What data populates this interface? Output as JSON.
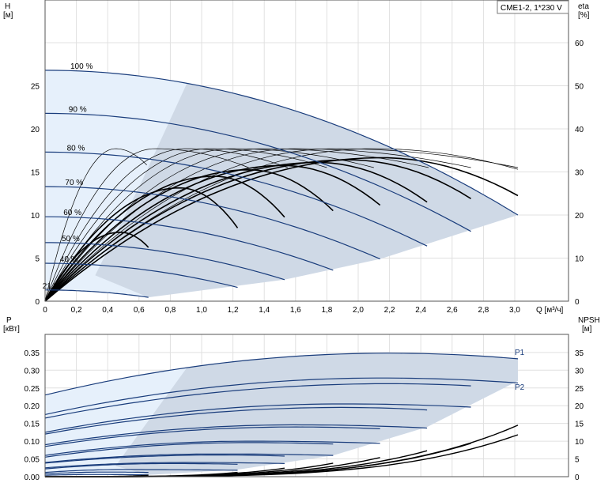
{
  "chart_data": [
    {
      "type": "line",
      "title": "CME1-2, 1*230 V",
      "xlabel": "Q [м³/ч]",
      "ylabel_left_name": "H",
      "ylabel_left_unit": "[м]",
      "ylabel_right_name": "eta",
      "ylabel_right_unit": "[%]",
      "xlim": [
        0,
        3.2
      ],
      "ylim_left": [
        0,
        30
      ],
      "ylim_right": [
        0,
        70
      ],
      "x_ticks": [
        "0",
        "0,2",
        "0,4",
        "0,6",
        "0,8",
        "1,0",
        "1,2",
        "1,4",
        "1,6",
        "1,8",
        "2,0",
        "2,2",
        "2,4",
        "2,6",
        "2,8",
        "3,0"
      ],
      "y_ticks_left": [
        "0",
        "5",
        "10",
        "15",
        "20",
        "25"
      ],
      "y_ticks_right": [
        "0",
        "10",
        "20",
        "30",
        "40",
        "50",
        "60"
      ],
      "grid": true,
      "head_curves": [
        {
          "label": "100 %",
          "H0": 26.8,
          "qmax": 3.02,
          "Hend": 10.0
        },
        {
          "label": "90 %",
          "H0": 21.8,
          "qmax": 2.72,
          "Hend": 8.1
        },
        {
          "label": "80 %",
          "H0": 17.3,
          "qmax": 2.44,
          "Hend": 6.4
        },
        {
          "label": "70 %",
          "H0": 13.3,
          "qmax": 2.14,
          "Hend": 4.9
        },
        {
          "label": "60 %",
          "H0": 9.8,
          "qmax": 1.84,
          "Hend": 3.6
        },
        {
          "label": "50 %",
          "H0": 6.8,
          "qmax": 1.53,
          "Hend": 2.5
        },
        {
          "label": "40 %",
          "H0": 4.4,
          "qmax": 1.23,
          "Hend": 1.6
        },
        {
          "label": "21 %",
          "H0": 1.3,
          "qmax": 0.66,
          "Hend": 0.45
        }
      ],
      "eta_curves": [
        {
          "qpeak": 2.15,
          "peak": 33.3,
          "qend": 3.02,
          "end": 24.5
        },
        {
          "qpeak": 1.94,
          "peak": 32.8,
          "qend": 2.72,
          "end": 23.8
        },
        {
          "qpeak": 1.74,
          "peak": 32.2,
          "qend": 2.44,
          "end": 23.0
        },
        {
          "qpeak": 1.52,
          "peak": 31.5,
          "qend": 2.14,
          "end": 22.3
        },
        {
          "qpeak": 1.3,
          "peak": 30.5,
          "qend": 1.84,
          "end": 21.0
        },
        {
          "qpeak": 1.08,
          "peak": 29.0,
          "qend": 1.53,
          "end": 19.5
        },
        {
          "qpeak": 0.86,
          "peak": 26.3,
          "qend": 1.23,
          "end": 17.0
        },
        {
          "qpeak": 0.48,
          "peak": 16.0,
          "qend": 0.66,
          "end": 12.5
        }
      ],
      "iso_eta_curves": [
        {
          "qpeak": 0.45,
          "peak": 17.7,
          "qend": 0.65,
          "end": 15.8
        },
        {
          "qpeak": 0.7,
          "peak": 17.7,
          "qend": 1.3,
          "end": 15.5
        },
        {
          "qpeak": 0.9,
          "peak": 17.7,
          "qend": 1.55,
          "end": 15.5
        },
        {
          "qpeak": 1.05,
          "peak": 17.7,
          "qend": 1.8,
          "end": 15.5
        },
        {
          "qpeak": 1.2,
          "peak": 17.7,
          "qend": 2.1,
          "end": 15.5
        },
        {
          "qpeak": 1.4,
          "peak": 17.7,
          "qend": 2.45,
          "end": 15.5
        },
        {
          "qpeak": 1.6,
          "peak": 17.7,
          "qend": 2.72,
          "end": 15.5
        },
        {
          "qpeak": 1.85,
          "peak": 17.7,
          "qend": 3.02,
          "end": 15.5
        },
        {
          "qpeak": 2.1,
          "peak": 17.7,
          "qend": 3.02,
          "end": 15.3
        }
      ]
    },
    {
      "type": "line",
      "xlabel": "",
      "ylabel_left_name": "P",
      "ylabel_left_unit": "[кВт]",
      "ylabel_right_name": "NPSH",
      "ylabel_right_unit": "[м]",
      "xlim": [
        0,
        3.2
      ],
      "ylim_left": [
        0,
        0.4
      ],
      "ylim_right": [
        0,
        40
      ],
      "y_ticks_left": [
        "0.00",
        "0.05",
        "0.10",
        "0.15",
        "0.20",
        "0.25",
        "0.30",
        "0.35"
      ],
      "y_ticks_right": [
        "0",
        "5",
        "10",
        "15",
        "20",
        "25",
        "30",
        "35"
      ],
      "grid": true,
      "series_labels": [
        "P1",
        "P2"
      ],
      "power_curves": [
        {
          "p0": 0.23,
          "qpeak": 2.2,
          "ppeak": 0.348,
          "qend": 3.02,
          "pend": 0.332
        },
        {
          "p0": 0.175,
          "qpeak": 2.15,
          "ppeak": 0.278,
          "qend": 3.02,
          "pend": 0.264
        },
        {
          "p0": 0.165,
          "qpeak": 2.2,
          "ppeak": 0.262,
          "qend": 2.72,
          "pend": 0.256
        },
        {
          "p0": 0.125,
          "qpeak": 1.9,
          "ppeak": 0.205,
          "qend": 2.72,
          "pend": 0.196
        },
        {
          "p0": 0.12,
          "qpeak": 1.9,
          "ppeak": 0.195,
          "qend": 2.44,
          "pend": 0.188
        },
        {
          "p0": 0.09,
          "qpeak": 1.6,
          "ppeak": 0.146,
          "qend": 2.44,
          "pend": 0.137
        },
        {
          "p0": 0.085,
          "qpeak": 1.6,
          "ppeak": 0.14,
          "qend": 2.14,
          "pend": 0.135
        },
        {
          "p0": 0.06,
          "qpeak": 1.3,
          "ppeak": 0.1,
          "qend": 2.14,
          "pend": 0.094
        },
        {
          "p0": 0.055,
          "qpeak": 1.3,
          "ppeak": 0.096,
          "qend": 1.84,
          "pend": 0.092
        },
        {
          "p0": 0.04,
          "qpeak": 1.1,
          "ppeak": 0.064,
          "qend": 1.84,
          "pend": 0.06
        },
        {
          "p0": 0.038,
          "qpeak": 1.1,
          "ppeak": 0.061,
          "qend": 1.53,
          "pend": 0.058
        },
        {
          "p0": 0.025,
          "qpeak": 0.9,
          "ppeak": 0.04,
          "qend": 1.53,
          "pend": 0.037
        },
        {
          "p0": 0.022,
          "qpeak": 0.8,
          "ppeak": 0.037,
          "qend": 1.23,
          "pend": 0.035
        },
        {
          "p0": 0.012,
          "qpeak": 0.5,
          "ppeak": 0.02,
          "qend": 1.23,
          "pend": 0.018
        },
        {
          "p0": 0.008,
          "qpeak": 0.4,
          "ppeak": 0.013,
          "qend": 0.66,
          "pend": 0.012
        },
        {
          "p0": 0.004,
          "qpeak": 0.3,
          "ppeak": 0.006,
          "qend": 0.66,
          "pend": 0.005
        }
      ],
      "npsh_curves": [
        {
          "qend": 0.66,
          "end": 0.4
        },
        {
          "qend": 1.23,
          "end": 1.2
        },
        {
          "qend": 1.53,
          "end": 2.4
        },
        {
          "qend": 1.84,
          "end": 3.8
        },
        {
          "qend": 2.14,
          "end": 5.4
        },
        {
          "qend": 2.44,
          "end": 7.3
        },
        {
          "qend": 2.72,
          "end": 9.4
        },
        {
          "qend": 3.02,
          "end": 11.8
        },
        {
          "qend": 3.02,
          "end": 14.5
        }
      ]
    }
  ],
  "colors": {
    "shade_light": "#e6f0fb",
    "shade_dark": "#cfd9e6",
    "curve_blue": "#1a3d7c",
    "grid": "#e0e0e0"
  }
}
